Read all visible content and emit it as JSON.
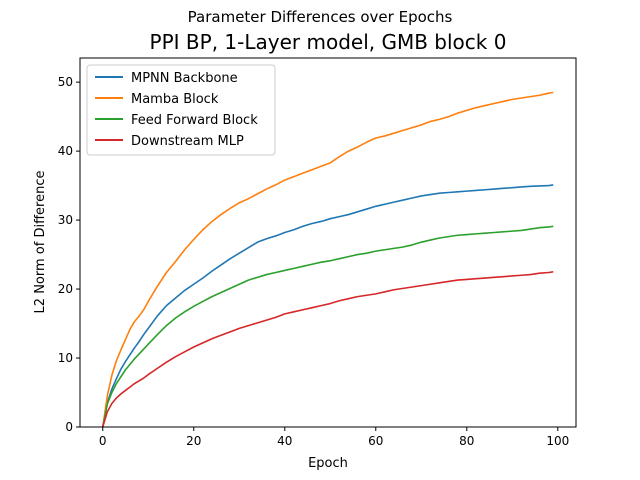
{
  "figure": {
    "suptitle": "Parameter Differences over Epochs"
  },
  "chart_data": {
    "type": "line",
    "title": "PPI BP, 1-Layer model, GMB block 0",
    "xlabel": "Epoch",
    "ylabel": "L2 Norm of Difference",
    "xlim": [
      -5,
      104
    ],
    "ylim": [
      0,
      53.5
    ],
    "xticks": [
      0,
      20,
      40,
      60,
      80,
      100
    ],
    "yticks": [
      0,
      10,
      20,
      30,
      40,
      50
    ],
    "grid": false,
    "legend": "top-left",
    "x": [
      0,
      1,
      2,
      3,
      4,
      5,
      6,
      7,
      8,
      9,
      10,
      12,
      14,
      16,
      18,
      20,
      22,
      24,
      26,
      28,
      30,
      32,
      34,
      36,
      38,
      40,
      42,
      44,
      46,
      48,
      50,
      52,
      54,
      56,
      58,
      60,
      62,
      64,
      66,
      68,
      70,
      72,
      74,
      76,
      78,
      80,
      82,
      84,
      86,
      88,
      90,
      92,
      94,
      96,
      98,
      99
    ],
    "series": [
      {
        "name": "MPNN Backbone",
        "color": "#1f77b4",
        "values": [
          0,
          3.5,
          5.5,
          7.0,
          8.4,
          9.5,
          10.5,
          11.5,
          12.4,
          13.4,
          14.3,
          16.1,
          17.6,
          18.7,
          19.8,
          20.7,
          21.6,
          22.6,
          23.5,
          24.4,
          25.2,
          26.0,
          26.8,
          27.3,
          27.7,
          28.2,
          28.6,
          29.1,
          29.5,
          29.8,
          30.2,
          30.5,
          30.8,
          31.2,
          31.6,
          32.0,
          32.3,
          32.6,
          32.9,
          33.2,
          33.5,
          33.7,
          33.9,
          34.0,
          34.1,
          34.2,
          34.3,
          34.4,
          34.5,
          34.6,
          34.7,
          34.8,
          34.9,
          34.95,
          35.0,
          35.1
        ]
      },
      {
        "name": "Mamba Block",
        "color": "#ff7f0e",
        "values": [
          0,
          4.5,
          7.5,
          9.6,
          11.2,
          12.7,
          14.2,
          15.3,
          16.1,
          17.0,
          18.2,
          20.4,
          22.4,
          24.0,
          25.7,
          27.2,
          28.6,
          29.8,
          30.8,
          31.7,
          32.5,
          33.1,
          33.8,
          34.5,
          35.1,
          35.8,
          36.3,
          36.8,
          37.3,
          37.8,
          38.3,
          39.2,
          40.0,
          40.6,
          41.3,
          41.9,
          42.2,
          42.6,
          43.0,
          43.4,
          43.8,
          44.3,
          44.6,
          45.0,
          45.5,
          45.9,
          46.3,
          46.6,
          46.9,
          47.2,
          47.5,
          47.7,
          47.9,
          48.1,
          48.4,
          48.5
        ]
      },
      {
        "name": "Feed Forward Block",
        "color": "#2ca02c",
        "values": [
          0,
          3.3,
          5.0,
          6.3,
          7.3,
          8.3,
          9.1,
          9.9,
          10.6,
          11.3,
          12.0,
          13.4,
          14.7,
          15.8,
          16.7,
          17.5,
          18.2,
          18.9,
          19.5,
          20.1,
          20.7,
          21.3,
          21.7,
          22.1,
          22.4,
          22.7,
          23.0,
          23.3,
          23.6,
          23.9,
          24.1,
          24.4,
          24.7,
          25.0,
          25.2,
          25.5,
          25.7,
          25.9,
          26.1,
          26.4,
          26.8,
          27.1,
          27.4,
          27.6,
          27.8,
          27.9,
          28.0,
          28.1,
          28.2,
          28.3,
          28.4,
          28.5,
          28.7,
          28.9,
          29.0,
          29.1
        ]
      },
      {
        "name": "Downstream MLP",
        "color": "#d62728",
        "values": [
          0,
          2.2,
          3.4,
          4.2,
          4.8,
          5.3,
          5.8,
          6.3,
          6.7,
          7.1,
          7.6,
          8.5,
          9.4,
          10.2,
          10.9,
          11.6,
          12.2,
          12.8,
          13.3,
          13.8,
          14.3,
          14.7,
          15.1,
          15.5,
          15.9,
          16.4,
          16.7,
          17.0,
          17.3,
          17.6,
          17.9,
          18.3,
          18.6,
          18.9,
          19.1,
          19.3,
          19.6,
          19.9,
          20.1,
          20.3,
          20.5,
          20.7,
          20.9,
          21.1,
          21.3,
          21.4,
          21.5,
          21.6,
          21.7,
          21.8,
          21.9,
          22.0,
          22.1,
          22.3,
          22.4,
          22.5
        ]
      }
    ]
  }
}
